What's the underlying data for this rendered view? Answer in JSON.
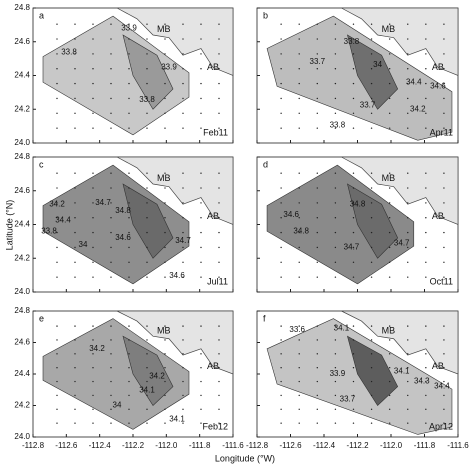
{
  "axes": {
    "xlim": [
      -112.8,
      -111.6
    ],
    "ylim": [
      24.0,
      24.8
    ],
    "xticks": [
      -112.8,
      -112.6,
      -112.4,
      -112.2,
      {
        "value": -112.0,
        "label": "-112.0"
      },
      -111.8,
      -111.6
    ],
    "yticks": [
      {
        "value": 24.0,
        "label": "24.0"
      },
      24.2,
      24.4,
      24.6,
      24.8
    ],
    "xlabel": "Longitude (°W)",
    "ylabel": "Latitude (°N)"
  },
  "places": [
    "MB",
    "AB"
  ],
  "panels": [
    {
      "letter": "a",
      "date": "Feb11",
      "contours": [
        33.8,
        33.9,
        33.9,
        33.8
      ]
    },
    {
      "letter": "b",
      "date": "Apr11",
      "contours": [
        33.8,
        33.7,
        34,
        34.4,
        34.6,
        34.2,
        33.7,
        33.8
      ]
    },
    {
      "letter": "c",
      "date": "Jul11",
      "contours": [
        34.7,
        34.2,
        34.4,
        34.8,
        33.8,
        34,
        34.6,
        34.7,
        34.6
      ]
    },
    {
      "letter": "d",
      "date": "Oct11",
      "contours": [
        34.6,
        34.8,
        34.8,
        34.7,
        34.7
      ]
    },
    {
      "letter": "e",
      "date": "Feb12",
      "contours": [
        34.2,
        34.2,
        34.1,
        34,
        34.1
      ]
    },
    {
      "letter": "f",
      "date": "Apr12",
      "contours": [
        33.6,
        34.1,
        33.9,
        33.7,
        34.1,
        34.3,
        34.4
      ]
    }
  ]
}
